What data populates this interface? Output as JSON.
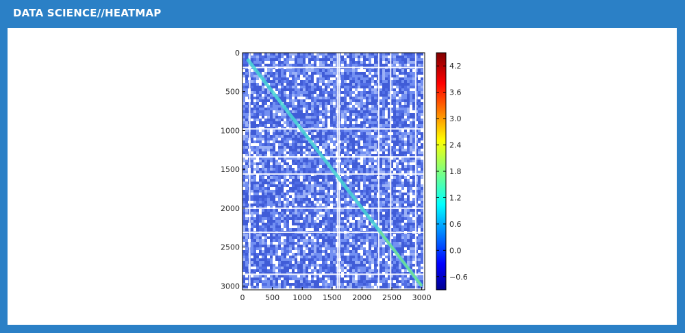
{
  "header": {
    "title": "DATA SCIENCE//HEATMAP"
  },
  "colors": {
    "frame": "#2b80c6",
    "panel": "#ffffff",
    "cell_low": "#1f3fd0",
    "cell_mid": "#5a7df0",
    "diagonal": "#49d6d6",
    "diagonal_alt": "#7ae08a"
  },
  "chart_data": {
    "type": "heatmap",
    "title": "",
    "xlabel": "",
    "ylabel": "",
    "matrix_size": 3000,
    "xlim": [
      0,
      3050
    ],
    "ylim": [
      3050,
      0
    ],
    "x_ticks": [
      0,
      500,
      1000,
      1500,
      2000,
      2500,
      3000
    ],
    "x_tick_labels": [
      "0",
      "500",
      "1000",
      "1500",
      "2000",
      "2500",
      "3000"
    ],
    "y_ticks": [
      0,
      500,
      1000,
      1500,
      2000,
      2500,
      3000
    ],
    "y_tick_labels": [
      "0",
      "500",
      "1000",
      "1500",
      "2000",
      "2500",
      "3000"
    ],
    "background_value": 0.0,
    "diagonal_value": 1.0,
    "colorbar": {
      "colormap": "jet",
      "range": [
        -0.9,
        4.5
      ],
      "ticks": [
        -0.6,
        0.0,
        0.6,
        1.2,
        1.8,
        2.4,
        3.0,
        3.6,
        4.2
      ],
      "tick_labels": [
        "−0.6",
        "0.0",
        "0.6",
        "1.2",
        "1.8",
        "2.4",
        "3.0",
        "3.6",
        "4.2"
      ]
    }
  }
}
